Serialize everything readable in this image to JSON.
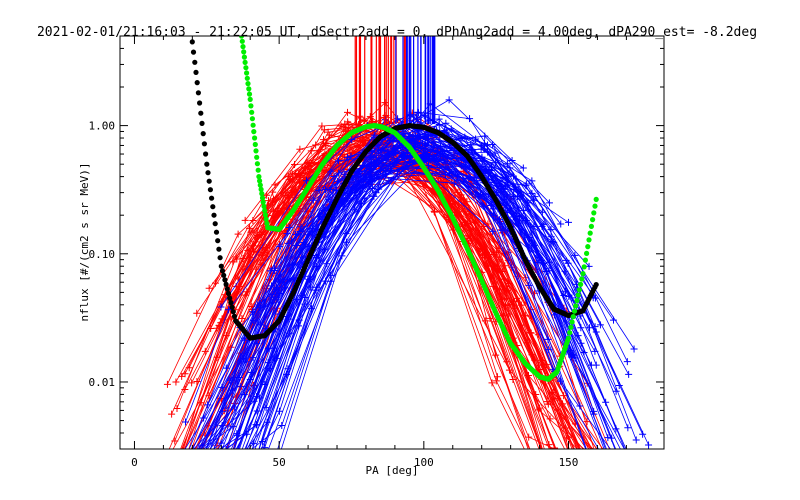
{
  "chart_data": {
    "type": "scatter",
    "title": "2021-02-01/21:16:03 - 21:22:05 UT, dSectr2add = 0, dPhAng2add = 4.00deg, dPA290_est=  -8.2deg",
    "xlabel": "PA [deg]",
    "ylabel": "nflux [#/(cm2 s sr MeV)]",
    "xlim": [
      -5,
      183
    ],
    "ylim": [
      0.003,
      5.0
    ],
    "yscale": "log",
    "x_ticks": [
      0,
      50,
      100,
      150
    ],
    "x_tick_labels": [
      "0",
      "50",
      "100",
      "150"
    ],
    "y_ticks": [
      0.01,
      0.1,
      1.0
    ],
    "y_tick_labels": [
      "0.01",
      "0.10",
      "1.00"
    ],
    "grid": false,
    "series": [
      {
        "color": "#0000ff",
        "marker": "plus-line",
        "peak_pa": 100,
        "peak_flux": 1.0,
        "pa_half_width": 48,
        "n_traces": 90
      },
      {
        "color": "#ff0000",
        "marker": "plus-line",
        "peak_pa": 83,
        "peak_flux": 1.0,
        "pa_half_width": 46,
        "n_traces": 90
      },
      {
        "color": "#000000",
        "marker": "dot",
        "x": [
          20,
          25,
          30,
          35,
          40,
          45,
          50,
          55,
          60,
          65,
          70,
          75,
          80,
          85,
          90,
          95,
          100,
          105,
          110,
          115,
          120,
          125,
          130,
          135,
          140,
          145,
          150,
          155,
          160
        ],
        "y": [
          4.5,
          0.5,
          0.08,
          0.03,
          0.022,
          0.023,
          0.03,
          0.05,
          0.09,
          0.16,
          0.27,
          0.44,
          0.63,
          0.82,
          0.95,
          1.0,
          0.97,
          0.88,
          0.74,
          0.58,
          0.4,
          0.26,
          0.16,
          0.09,
          0.055,
          0.037,
          0.033,
          0.036,
          0.06
        ]
      },
      {
        "color": "#00ee00",
        "marker": "dot",
        "x": [
          37,
          40,
          43,
          46,
          50,
          55,
          60,
          65,
          70,
          75,
          80,
          83,
          86,
          90,
          95,
          100,
          105,
          110,
          115,
          120,
          125,
          130,
          135,
          140,
          143,
          146,
          150,
          155,
          160
        ],
        "y": [
          5.0,
          1.6,
          0.4,
          0.16,
          0.155,
          0.22,
          0.33,
          0.5,
          0.7,
          0.88,
          0.98,
          1.0,
          0.97,
          0.88,
          0.68,
          0.47,
          0.31,
          0.19,
          0.11,
          0.062,
          0.034,
          0.02,
          0.014,
          0.011,
          0.0105,
          0.012,
          0.022,
          0.07,
          0.3
        ]
      }
    ],
    "tick_marks": [
      {
        "color": "#ff0000",
        "x_range": [
          73,
          95
        ],
        "count": 22
      },
      {
        "color": "#0000ff",
        "x_range": [
          90,
          104
        ],
        "count": 20
      }
    ]
  }
}
